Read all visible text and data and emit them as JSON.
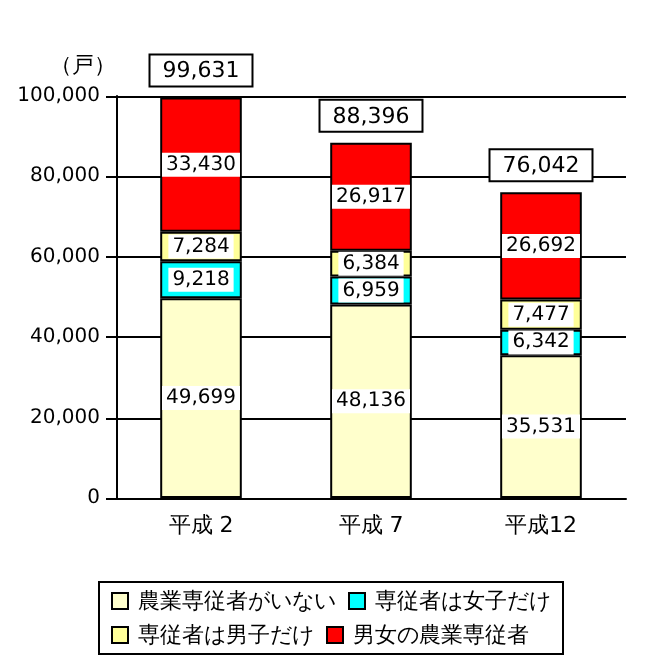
{
  "chart_data": {
    "type": "bar",
    "stacked": true,
    "ylabel": "（戸）",
    "categories": [
      "平成 2",
      "平成 7",
      "平成12"
    ],
    "series": [
      {
        "name": "農業専従者がいない",
        "color": "#ffffcc",
        "values": [
          49699,
          48136,
          35531
        ],
        "value_labels": [
          "49,699",
          "48,136",
          "35,531"
        ]
      },
      {
        "name": "専従者は女子だけ",
        "color": "#00ffff",
        "values": [
          9218,
          6959,
          6342
        ],
        "value_labels": [
          "9,218",
          "6,959",
          "6,342"
        ]
      },
      {
        "name": "専従者は男子だけ",
        "color": "#ffff99",
        "values": [
          7284,
          6384,
          7477
        ],
        "value_labels": [
          "7,284",
          "6,384",
          "7,477"
        ]
      },
      {
        "name": "男女の農業専従者",
        "color": "#ff0000",
        "values": [
          33430,
          26917,
          26692
        ],
        "value_labels": [
          "33,430",
          "26,917",
          "26,692"
        ]
      }
    ],
    "totals": [
      "99,631",
      "88,396",
      "76,042"
    ],
    "ylim": [
      0,
      100000
    ],
    "yticks": [
      0,
      {
        "value": 20000,
        "label": "20,000"
      },
      {
        "value": 40000,
        "label": "40,000"
      },
      {
        "value": 60000,
        "label": "60,000"
      },
      {
        "value": 80000,
        "label": "80,000"
      },
      {
        "value": 100000,
        "label": "100,000"
      }
    ],
    "grid": "y",
    "legend": "bottom"
  }
}
